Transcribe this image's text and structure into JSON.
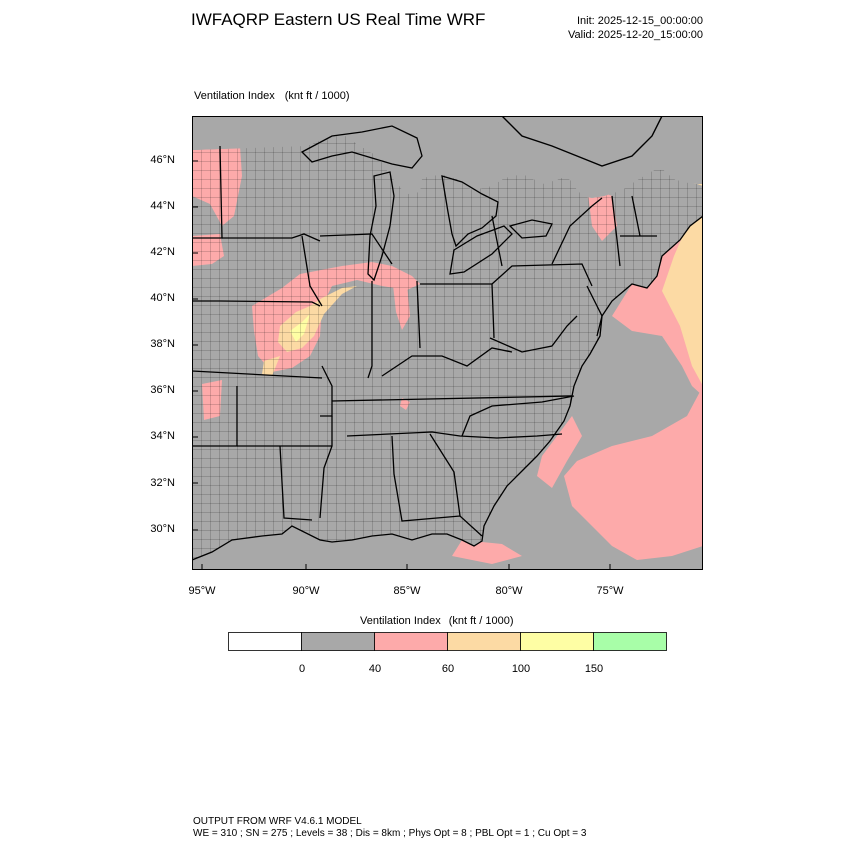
{
  "header": {
    "title": "IWFAQRP Eastern US Real Time WRF",
    "init": "Init: 2025-12-15_00:00:00",
    "valid": "Valid: 2025-12-20_15:00:00"
  },
  "map": {
    "field_name": "Ventilation Index",
    "field_units": "(knt ft / 1000)",
    "lat_labels": [
      "46°N",
      "44°N",
      "42°N",
      "40°N",
      "38°N",
      "36°N",
      "34°N",
      "32°N",
      "30°N"
    ],
    "lon_labels": [
      "95°W",
      "90°W",
      "85°W",
      "80°W",
      "75°W"
    ],
    "colors": {
      "land_low": "#a8a8a8",
      "vi_40_60": "#fdaaaa",
      "vi_60_100": "#fcdaa4",
      "vi_100_150": "#fefea4",
      "vi_150_plus": "#a8fea8"
    }
  },
  "colorbar": {
    "title": "Ventilation Index",
    "units": "(knt ft / 1000)",
    "colors": [
      "#ffffff",
      "#a8a8a8",
      "#fdaaaa",
      "#fcdaa4",
      "#fefea4",
      "#a8fea8"
    ],
    "tick_labels": [
      "0",
      "40",
      "60",
      "100",
      "150"
    ]
  },
  "footer": {
    "line1": "OUTPUT FROM WRF V4.6.1 MODEL",
    "line2": "WE = 310 ; SN = 275 ; Levels = 38 ; Dis = 8km ; Phys Opt = 8 ; PBL Opt = 1 ; Cu Opt = 3"
  }
}
